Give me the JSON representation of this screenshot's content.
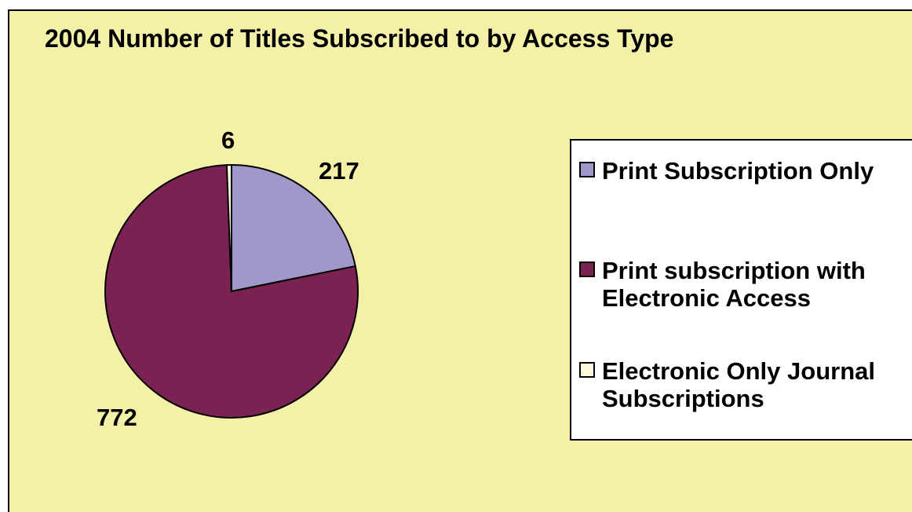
{
  "chart_data": {
    "type": "pie",
    "title": "2004 Number of Titles Subscribed to by Access Type",
    "categories": [
      "Print Subscription Only",
      "Print subscription with Electronic Access",
      "Electronic Only Journal Subscriptions"
    ],
    "values": [
      217,
      772,
      6
    ],
    "data_labels": [
      "217",
      "772",
      "6"
    ],
    "colors": [
      "#9f98c8",
      "#7b2252",
      "#fdfbdc"
    ],
    "start_direction": "12 o'clock",
    "order": "clockwise",
    "legend_position": "right",
    "legend_entries": [
      {
        "label": "Print Subscription Only",
        "color": "#9f98c8"
      },
      {
        "label": "Print subscription with Electronic Access",
        "color": "#7b2252"
      },
      {
        "label": "Electronic Only Journal Subscriptions",
        "color": "#fdfbdc"
      }
    ]
  }
}
